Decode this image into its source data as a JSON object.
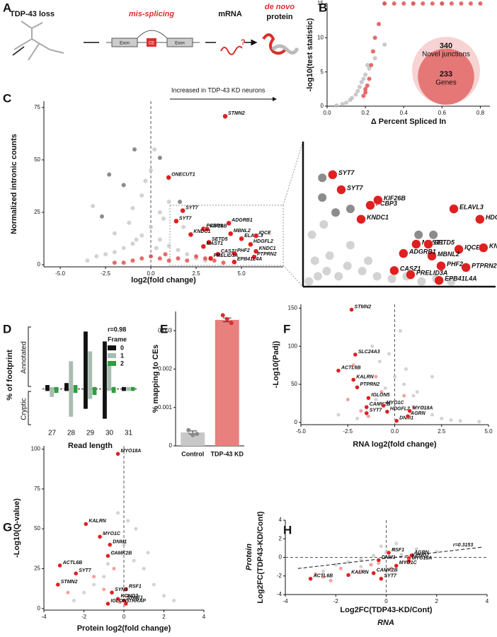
{
  "panel_labels": [
    "A",
    "B",
    "C",
    "D",
    "E",
    "F",
    "G",
    "H"
  ],
  "schematic": {
    "loss": "TDP-43 loss",
    "splicing": "mis-splicing",
    "mrna": "mRNA",
    "protein_prefix": "de novo",
    "protein": "protein",
    "exon_left": "Exon",
    "ce": "CE",
    "exon_right": "Exon",
    "question": "?"
  },
  "chart_data": [
    {
      "type": "scatter",
      "xlabel": "Δ Percent Spliced In",
      "ylabel": "-log10(test statistic)",
      "xlim": [
        0,
        0.85
      ],
      "ylim": [
        0,
        15
      ],
      "xticks": [
        {
          "value": 0,
          "label": "0.0"
        },
        0.2,
        0.4,
        0.6,
        0.8
      ],
      "yticks": [
        0,
        5,
        10,
        15
      ],
      "series": [
        {
          "color": "#b8b8b8",
          "x": [
            0.05,
            0.08,
            0.1,
            0.12,
            0.13,
            0.15,
            0.16,
            0.17,
            0.18,
            0.2,
            0.22,
            0.25,
            0.3,
            0.19,
            0.21,
            0.3,
            0.45,
            0.6
          ],
          "y": [
            0.1,
            0.3,
            0.5,
            0.9,
            1.2,
            1.7,
            2.2,
            2.8,
            3.5,
            4.6,
            5.5,
            7,
            9,
            4,
            6,
            15,
            15,
            15
          ]
        },
        {
          "color": "#e03a3a",
          "x": [
            0.2,
            0.21,
            0.22,
            0.23,
            0.24,
            0.25,
            0.27,
            0.3,
            0.35,
            0.4,
            0.45,
            0.5,
            0.55,
            0.6,
            0.65,
            0.7,
            0.75,
            0.8,
            0.19,
            0.2
          ],
          "y": [
            2.5,
            3,
            4,
            6,
            8,
            10,
            12,
            15,
            15,
            15,
            15,
            15,
            15,
            15,
            15,
            15,
            15,
            15,
            1.5,
            2
          ]
        }
      ],
      "venn": {
        "outer_value": 340,
        "outer_label": "Novel junctions",
        "inner_value": 233,
        "inner_label": "Genes"
      }
    },
    {
      "type": "scatter",
      "xlabel": "log2(fold change)",
      "ylabel": "Normalized intronic counts",
      "annotation": "Increased in TDP-43 KD neurons",
      "xlim": [
        -5.9,
        7.3
      ],
      "ylim": [
        -1,
        78
      ],
      "vline": 0,
      "xticks": [
        {
          "value": -5,
          "label": "-5.0"
        },
        -2.5,
        {
          "value": 0,
          "label": "0.0"
        },
        2.5,
        {
          "value": 5,
          "label": "5.0"
        }
      ],
      "yticks": [
        0,
        25,
        50,
        75
      ],
      "series": [
        {
          "color": "#c4c4c4",
          "x": [
            -3.5,
            -3,
            -2.5,
            -2,
            -1.5,
            -1,
            -0.5,
            0,
            0.5,
            1,
            1.5,
            2,
            2.5,
            3,
            -1,
            -0.5,
            0,
            0.5,
            1,
            -2,
            0.2,
            -0.3,
            0.7,
            1.8,
            -1.2,
            -3.2,
            -0.8,
            0.3
          ],
          "y": [
            2,
            4,
            5,
            6,
            8,
            10,
            14,
            18,
            12,
            9,
            7,
            5,
            3,
            2,
            27,
            33,
            45,
            25,
            30,
            15,
            55,
            40,
            22,
            18,
            20,
            28,
            12,
            8
          ]
        },
        {
          "color": "#666666",
          "x": [
            -2.7,
            -1.5,
            -0.9,
            0.5,
            1.6,
            -2.3
          ],
          "y": [
            23,
            38,
            55,
            51,
            30,
            43
          ]
        },
        {
          "color": "#e03a3a",
          "x": [
            -2,
            -1,
            -0.5,
            0,
            0.5,
            1,
            1.5,
            2,
            2.5,
            3,
            3.5,
            4,
            -1.5,
            0.8
          ],
          "y": [
            1,
            2,
            3,
            4,
            3,
            2,
            3,
            2,
            4,
            3,
            2,
            1,
            1,
            5
          ]
        }
      ],
      "genes": {
        "labels": [
          "STMN2",
          "ONECUT1",
          "SYT7",
          "SYT7",
          "PCBP3",
          "KIF26B",
          "KNDC1",
          "ADGRB1",
          "MBNL2",
          "SETD5",
          "ELAVL3",
          "IQCE",
          "HDGFL2",
          "MAST1",
          "KNDC1",
          "CASZ1",
          "PHF2",
          "PTPRN2",
          "PRELID3A",
          "EPB41L4A"
        ],
        "x": [
          4.1,
          0.98,
          1.76,
          1.4,
          2.9,
          3.1,
          2.2,
          4.3,
          4.4,
          3.2,
          5.0,
          5.8,
          5.5,
          2.9,
          5.8,
          3.7,
          4.6,
          5.7,
          3.3,
          4.6
        ],
        "y": [
          70.8,
          41.6,
          25.8,
          20.8,
          17.1,
          17,
          14.4,
          19.8,
          14.8,
          10.7,
          12.4,
          13.8,
          9.7,
          8.7,
          6.4,
          5,
          5.4,
          3.7,
          3,
          1.3
        ]
      }
    },
    {
      "type": "scatter",
      "xlim": [
        1,
        7.5
      ],
      "ylim": [
        0,
        28
      ],
      "series": [
        {
          "color": "#c4c4c4",
          "x": [
            1.2,
            1.5,
            1.8,
            2.2,
            2.5,
            3,
            3.5,
            4,
            4.5,
            5,
            5.5,
            6,
            1.4,
            1.9,
            2.6,
            3.2,
            1.3,
            1.7
          ],
          "y": [
            1,
            2,
            3,
            2,
            4,
            3,
            2,
            1.5,
            2,
            1,
            1.5,
            1,
            5,
            6,
            8,
            5,
            10,
            12
          ]
        },
        {
          "color": "#666666",
          "x": [
            1.65,
            1.65,
            2.6,
            2.1,
            4.9,
            5.4
          ],
          "y": [
            21,
            17.2,
            15,
            14.3,
            10,
            10
          ]
        }
      ],
      "genes": {
        "labels": [
          "SYT7",
          "SYT7",
          "PCBP3",
          "KIF26B",
          "KNDC1",
          "MAST1",
          "SETD5",
          "ELAVL3",
          "HDGFL2",
          "IQCE",
          "KNDC1",
          "PTPRN2",
          "PHF2",
          "MBNL2",
          "ADGRB1",
          "CASZ1",
          "PRELID3A",
          "EPB41L4A"
        ],
        "x": [
          2,
          2.29,
          3.27,
          3.53,
          2.96,
          4.82,
          5.23,
          6.09,
          6.97,
          6.26,
          7.09,
          6.5,
          5.66,
          5.35,
          4.39,
          4.08,
          4.63,
          5.59
        ],
        "y": [
          21.6,
          18.7,
          15.7,
          16.7,
          13,
          8.2,
          8.2,
          15,
          13,
          7.2,
          7.5,
          3.7,
          4,
          5.9,
          6.4,
          3.1,
          2.3,
          1.2
        ]
      }
    },
    {
      "type": "bar",
      "xlabel": "Read length",
      "ylabel": "% of footprint",
      "upper_label": "Annotated",
      "lower_label": "Cryptic",
      "annotation": "r=0.98",
      "legend_title": "Frame",
      "ylim": [
        -18,
        32
      ],
      "categories": [
        "27",
        "28",
        "29",
        "30",
        "31"
      ],
      "series": [
        {
          "name": "0",
          "color": "#111111",
          "values": [
            2,
            3,
            29,
            24,
            1
          ],
          "cryptic_values": [
            -1,
            -1,
            -10,
            -15,
            -1
          ]
        },
        {
          "name": "1",
          "color": "#a8bdb0",
          "values": [
            1,
            14,
            19,
            12,
            1
          ],
          "cryptic_values": [
            -4,
            -14,
            -5,
            -1,
            -1
          ]
        },
        {
          "name": "2",
          "color": "#2e9e3e",
          "values": [
            1,
            2,
            1,
            1,
            1
          ],
          "cryptic_values": [
            -2,
            -2,
            -3,
            -2,
            -1
          ]
        }
      ]
    },
    {
      "type": "bar",
      "ylabel": "% mapping to CEs",
      "ylim": [
        0,
        0.0035
      ],
      "yticks": [
        0,
        0.001,
        0.002,
        0.003
      ],
      "categories": [
        "Control",
        "TDP-43 KD"
      ],
      "values": [
        0.00035,
        0.00328
      ],
      "errors": [
        4e-05,
        5e-05
      ],
      "colors": [
        "#c8c8c8",
        "#e8807e"
      ],
      "point_colors": [
        "#8a8a8a",
        "#d9302c"
      ],
      "points": [
        [
          0.00041,
          0.00028,
          0.00031
        ],
        [
          0.0034,
          0.0033,
          0.0032
        ]
      ]
    },
    {
      "type": "scatter",
      "xlabel": "RNA log2(fold change)",
      "ylabel": "-Log10(Padj)",
      "xlim": [
        -5,
        5
      ],
      "ylim": [
        -3,
        155
      ],
      "vline": 0,
      "xticks": [
        {
          "value": -5,
          "label": "-5.0"
        },
        -2.5,
        {
          "value": 0,
          "label": "0.0"
        },
        2.5,
        {
          "value": 5,
          "label": "5.0"
        }
      ],
      "yticks": [
        0,
        50,
        100,
        150
      ],
      "series": [
        {
          "color": "#c4c4c4",
          "x": [
            -3,
            -2,
            -1.5,
            -1,
            -0.5,
            0,
            0.5,
            1,
            1.5,
            2,
            2.5,
            3,
            -0.8,
            0.6,
            1.2,
            -1.2,
            0.3,
            -0.3,
            2,
            3.5,
            4.5
          ],
          "y": [
            10,
            5,
            20,
            30,
            45,
            60,
            50,
            35,
            20,
            10,
            5,
            3,
            80,
            70,
            40,
            100,
            120,
            90,
            60,
            2,
            1
          ]
        },
        {
          "color": "#f08080",
          "x": [
            -2.5,
            -1.8,
            -1,
            -0.7,
            0.5,
            1,
            -2.2,
            -1.4
          ],
          "y": [
            30,
            15,
            60,
            40,
            35,
            20,
            75,
            8
          ]
        }
      ],
      "genes": {
        "labels": [
          "STMN2",
          "SLC24A3",
          "ACTL6B",
          "KALRN",
          "PTPRN2",
          "IGLON5",
          "CAMK2B",
          "SYT7",
          "MYO1C",
          "HDGFL2",
          "DNM1",
          "MYO18A",
          "AGRN"
        ],
        "x": [
          -2.3,
          -2.1,
          -3,
          -2.2,
          -2,
          -1.4,
          -1.5,
          -1.5,
          -0.6,
          -0.4,
          0.1,
          0.8,
          0.7
        ],
        "y": [
          148,
          89,
          68,
          56,
          46,
          32,
          20,
          12,
          22,
          14,
          2,
          15,
          8
        ]
      }
    },
    {
      "type": "scatter",
      "xlabel": "Protein log2(fold change)",
      "ylabel": "-Log10(Q-value)",
      "xlim": [
        -4,
        4
      ],
      "ylim": [
        -1,
        102
      ],
      "vline": 0,
      "xticks": [
        -4,
        -2,
        0,
        2,
        4
      ],
      "yticks": [
        0,
        25,
        50,
        75,
        100
      ],
      "series": [
        {
          "color": "#c4c4c4",
          "x": [
            -2,
            -1.5,
            -1,
            -0.5,
            0,
            0.5,
            1,
            1.5,
            2,
            -0.3,
            0.2,
            0.6,
            -0.8,
            1.2,
            2.5,
            -2.5
          ],
          "y": [
            10,
            15,
            20,
            35,
            40,
            30,
            25,
            15,
            8,
            60,
            55,
            50,
            28,
            35,
            5,
            5
          ]
        },
        {
          "color": "#f08080",
          "x": [
            -1.5,
            -1,
            -0.5,
            0.2,
            -2.8,
            -0.2
          ],
          "y": [
            20,
            12,
            25,
            8,
            10,
            4
          ]
        }
      ],
      "genes": {
        "labels": [
          "MYO18A",
          "KALRN",
          "MYO1C",
          "DNM1",
          "CAMK2B",
          "ACTL6B",
          "SYT7",
          "STMN2",
          "RSF1",
          "SYN3",
          "KCNQ2",
          "SYNE1",
          "TRRAP",
          "IGLON5"
        ],
        "x": [
          -0.3,
          -1.9,
          -1.2,
          -0.7,
          -0.8,
          -3.2,
          -2.4,
          -3.3,
          0.1,
          -0.6,
          -0.3,
          0,
          0.1,
          -0.8
        ],
        "y": [
          97,
          53,
          45,
          40,
          33,
          27,
          22,
          15,
          12,
          10,
          6,
          5,
          3,
          3
        ]
      }
    },
    {
      "type": "scatter",
      "xlabel": "Log2FC(TDP43-KD/Cont)",
      "x_subtitle": "RNA",
      "ylabel": "Log2FC(TDP43-KD/Cont)",
      "y_subtitle": "Protein",
      "annotation": "r=0.3153",
      "xlim": [
        -4,
        4
      ],
      "ylim": [
        -4,
        4
      ],
      "vline": 0,
      "hline": 0,
      "xticks": [
        -4,
        -2,
        0,
        2,
        4
      ],
      "yticks": [
        -4,
        -2,
        0,
        2,
        4
      ],
      "fit": {
        "x": [
          -3.5,
          3.8
        ],
        "y": [
          -1.2,
          1.1
        ]
      },
      "series": [
        {
          "color": "#c4c4c4",
          "x": [
            -2,
            -1.5,
            -1,
            -0.5,
            0,
            0.3,
            0.6,
            1,
            1.5,
            2,
            -0.2,
            0.4,
            0.8,
            -1,
            -2.5,
            1.2
          ],
          "y": [
            -0.8,
            -0.5,
            -0.2,
            0.2,
            0.5,
            0.8,
            0.3,
            0.1,
            0.4,
            0.6,
            1.2,
            1.5,
            -0.5,
            -1,
            -1.5,
            0.9
          ]
        },
        {
          "color": "#f08080",
          "x": [
            -2.8,
            -2.2,
            -1.8,
            -1,
            -0.6,
            -0.3,
            0.2,
            -2.5
          ],
          "y": [
            -1.8,
            -2.5,
            -1.2,
            -1.5,
            -0.8,
            -0.6,
            -1.2,
            -2.1
          ]
        }
      ],
      "genes": {
        "labels": [
          "RSF1",
          "AGRN",
          "KCNQ2",
          "MYO18A",
          "DNM1",
          "MYO1C",
          "CAMK2B",
          "KALRN",
          "SYT7",
          "ACTL6B"
        ],
        "x": [
          0.1,
          1,
          0.9,
          0.9,
          -0.3,
          0.4,
          -0.5,
          -1.5,
          -0.2,
          -3
        ],
        "y": [
          0.5,
          0.2,
          -0.1,
          -0.4,
          -0.3,
          -0.9,
          -1.7,
          -1.9,
          -2.3,
          -2.3
        ]
      }
    }
  ]
}
